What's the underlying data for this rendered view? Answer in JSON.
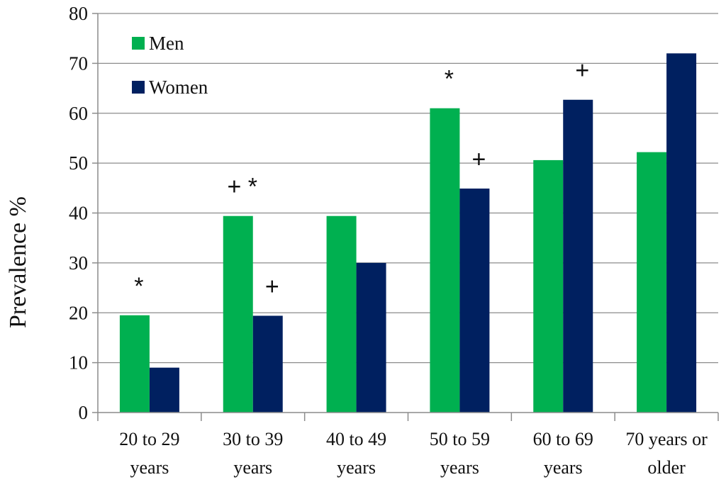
{
  "chart_data": {
    "type": "bar",
    "title": "",
    "xlabel": "",
    "ylabel": "Prevalence %",
    "ylim": [
      0,
      80
    ],
    "yticks": [
      0,
      10,
      20,
      30,
      40,
      50,
      60,
      70,
      80
    ],
    "grid": true,
    "legend_position": "top-left",
    "categories": [
      [
        "20 to 29",
        "years"
      ],
      [
        "30 to 39",
        "years"
      ],
      [
        "40 to 49",
        "years"
      ],
      [
        "50  to 59",
        "years"
      ],
      [
        "60 to 69",
        "years"
      ],
      [
        "70 years or",
        "older"
      ]
    ],
    "series": [
      {
        "name": "Men",
        "color": "#00b050",
        "values": [
          19.5,
          39.4,
          39.4,
          61,
          50.6,
          52.2
        ]
      },
      {
        "name": "Women",
        "color": "#002060",
        "values": [
          9,
          19.4,
          30,
          44.9,
          62.7,
          72
        ]
      }
    ],
    "annotations": [
      {
        "category": 0,
        "series": "Men",
        "text": "*"
      },
      {
        "category": 1,
        "series": "Men",
        "text": "+ *"
      },
      {
        "category": 1,
        "series": "Women",
        "text": "+"
      },
      {
        "category": 3,
        "series": "Men",
        "text": "*"
      },
      {
        "category": 3,
        "series": "Women",
        "text": "+"
      },
      {
        "category": 4,
        "series": "Women",
        "text": "+"
      }
    ]
  }
}
